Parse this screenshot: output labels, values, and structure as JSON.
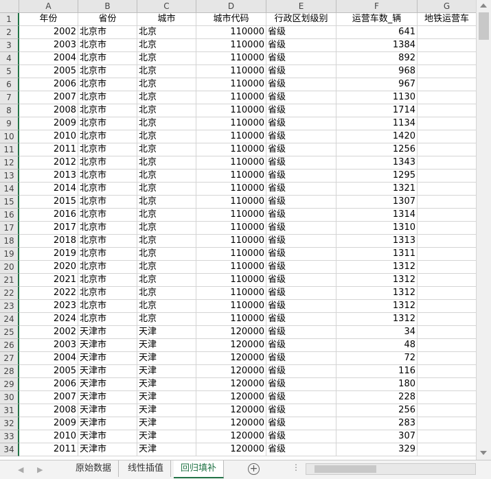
{
  "column_letters": [
    "A",
    "B",
    "C",
    "D",
    "E",
    "F",
    "G"
  ],
  "row_numbers": [
    1,
    2,
    3,
    4,
    5,
    6,
    7,
    8,
    9,
    10,
    11,
    12,
    13,
    14,
    15,
    16,
    17,
    18,
    19,
    20,
    21,
    22,
    23,
    24,
    25,
    26,
    27,
    28,
    29,
    30,
    31,
    32,
    33,
    34
  ],
  "table": {
    "header": [
      "年份",
      "省份",
      "城市",
      "城市代码",
      "行政区划级别",
      "运营车数_辆",
      "地铁运营车"
    ],
    "rows": [
      [
        2002,
        "北京市",
        "北京",
        110000,
        "省级",
        641
      ],
      [
        2003,
        "北京市",
        "北京",
        110000,
        "省级",
        1384
      ],
      [
        2004,
        "北京市",
        "北京",
        110000,
        "省级",
        892
      ],
      [
        2005,
        "北京市",
        "北京",
        110000,
        "省级",
        968
      ],
      [
        2006,
        "北京市",
        "北京",
        110000,
        "省级",
        967
      ],
      [
        2007,
        "北京市",
        "北京",
        110000,
        "省级",
        1130
      ],
      [
        2008,
        "北京市",
        "北京",
        110000,
        "省级",
        1714
      ],
      [
        2009,
        "北京市",
        "北京",
        110000,
        "省级",
        1134
      ],
      [
        2010,
        "北京市",
        "北京",
        110000,
        "省级",
        1420
      ],
      [
        2011,
        "北京市",
        "北京",
        110000,
        "省级",
        1256
      ],
      [
        2012,
        "北京市",
        "北京",
        110000,
        "省级",
        1343
      ],
      [
        2013,
        "北京市",
        "北京",
        110000,
        "省级",
        1295
      ],
      [
        2014,
        "北京市",
        "北京",
        110000,
        "省级",
        1321
      ],
      [
        2015,
        "北京市",
        "北京",
        110000,
        "省级",
        1307
      ],
      [
        2016,
        "北京市",
        "北京",
        110000,
        "省级",
        1314
      ],
      [
        2017,
        "北京市",
        "北京",
        110000,
        "省级",
        1310
      ],
      [
        2018,
        "北京市",
        "北京",
        110000,
        "省级",
        1313
      ],
      [
        2019,
        "北京市",
        "北京",
        110000,
        "省级",
        1311
      ],
      [
        2020,
        "北京市",
        "北京",
        110000,
        "省级",
        1312
      ],
      [
        2021,
        "北京市",
        "北京",
        110000,
        "省级",
        1312
      ],
      [
        2022,
        "北京市",
        "北京",
        110000,
        "省级",
        1312
      ],
      [
        2023,
        "北京市",
        "北京",
        110000,
        "省级",
        1312
      ],
      [
        2024,
        "北京市",
        "北京",
        110000,
        "省级",
        1312
      ],
      [
        2002,
        "天津市",
        "天津",
        120000,
        "省级",
        34
      ],
      [
        2003,
        "天津市",
        "天津",
        120000,
        "省级",
        48
      ],
      [
        2004,
        "天津市",
        "天津",
        120000,
        "省级",
        72
      ],
      [
        2005,
        "天津市",
        "天津",
        120000,
        "省级",
        116
      ],
      [
        2006,
        "天津市",
        "天津",
        120000,
        "省级",
        180
      ],
      [
        2007,
        "天津市",
        "天津",
        120000,
        "省级",
        228
      ],
      [
        2008,
        "天津市",
        "天津",
        120000,
        "省级",
        256
      ],
      [
        2009,
        "天津市",
        "天津",
        120000,
        "省级",
        283
      ],
      [
        2010,
        "天津市",
        "天津",
        120000,
        "省级",
        307
      ],
      [
        2011,
        "天津市",
        "天津",
        120000,
        "省级",
        329
      ]
    ]
  },
  "sheet_tabs": [
    "原始数据",
    "线性插值",
    "回归填补"
  ],
  "active_tab": 2
}
